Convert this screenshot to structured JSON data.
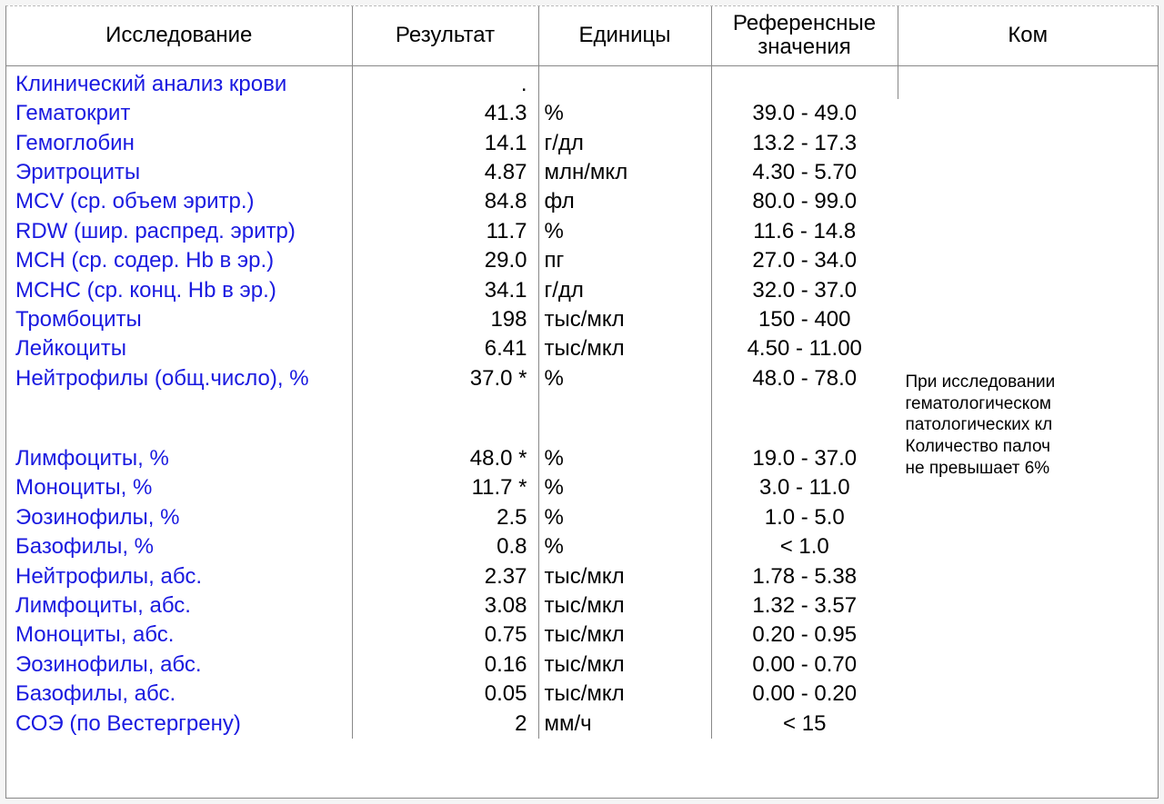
{
  "headers": {
    "test": "Исследование",
    "result": "Результат",
    "units": "Единицы",
    "reference": "Референсные значения",
    "comment": "Ком"
  },
  "comment_text": "При исследовании\nгематологическом\nпатологических кл\nКоличество палоч\nне превышает 6%",
  "rows": [
    {
      "test": "Клинический анализ крови",
      "result": ".",
      "units": "",
      "ref": ""
    },
    {
      "test": "Гематокрит",
      "result": "41.3",
      "units": "%",
      "ref": "39.0 - 49.0"
    },
    {
      "test": "Гемоглобин",
      "result": "14.1",
      "units": "г/дл",
      "ref": "13.2 - 17.3"
    },
    {
      "test": "Эритроциты",
      "result": "4.87",
      "units": "млн/мкл",
      "ref": "4.30 - 5.70"
    },
    {
      "test": "MCV (ср. объем эритр.)",
      "result": "84.8",
      "units": "фл",
      "ref": "80.0 - 99.0"
    },
    {
      "test": "RDW (шир. распред. эритр)",
      "result": "11.7",
      "units": "%",
      "ref": "11.6 - 14.8"
    },
    {
      "test": "MCH (ср. содер. Hb в эр.)",
      "result": "29.0",
      "units": "пг",
      "ref": "27.0 - 34.0"
    },
    {
      "test": "МСНС (ср. конц. Hb в эр.)",
      "result": "34.1",
      "units": "г/дл",
      "ref": "32.0 - 37.0"
    },
    {
      "test": "Тромбоциты",
      "result": "198",
      "units": "тыс/мкл",
      "ref": "150 - 400"
    },
    {
      "test": "Лейкоциты",
      "result": "6.41",
      "units": "тыс/мкл",
      "ref": "4.50 - 11.00"
    },
    {
      "test": "Нейтрофилы (общ.число), %",
      "result": "37.0 *",
      "units": "%",
      "ref": "48.0 - 78.0",
      "has_comment": true
    },
    {
      "spacer": true
    },
    {
      "spacer": true
    },
    {
      "test": "Лимфоциты, %",
      "result": "48.0 *",
      "units": "%",
      "ref": "19.0 - 37.0"
    },
    {
      "test": "Моноциты, %",
      "result": "11.7 *",
      "units": "%",
      "ref": "3.0 - 11.0"
    },
    {
      "test": "Эозинофилы, %",
      "result": "2.5",
      "units": "%",
      "ref": "1.0 - 5.0"
    },
    {
      "test": "Базофилы, %",
      "result": "0.8",
      "units": "%",
      "ref": "< 1.0"
    },
    {
      "test": "Нейтрофилы, абс.",
      "result": "2.37",
      "units": "тыс/мкл",
      "ref": "1.78 - 5.38"
    },
    {
      "test": "Лимфоциты, абс.",
      "result": "3.08",
      "units": "тыс/мкл",
      "ref": "1.32 - 3.57"
    },
    {
      "test": "Моноциты, абс.",
      "result": "0.75",
      "units": "тыс/мкл",
      "ref": "0.20 - 0.95"
    },
    {
      "test": "Эозинофилы, абс.",
      "result": "0.16",
      "units": "тыс/мкл",
      "ref": "0.00 - 0.70"
    },
    {
      "test": "Базофилы, абс.",
      "result": "0.05",
      "units": "тыс/мкл",
      "ref": "0.00 - 0.20"
    },
    {
      "test": "СОЭ (по Вестергрену)",
      "result": "2",
      "units": "мм/ч",
      "ref": "< 15"
    }
  ]
}
